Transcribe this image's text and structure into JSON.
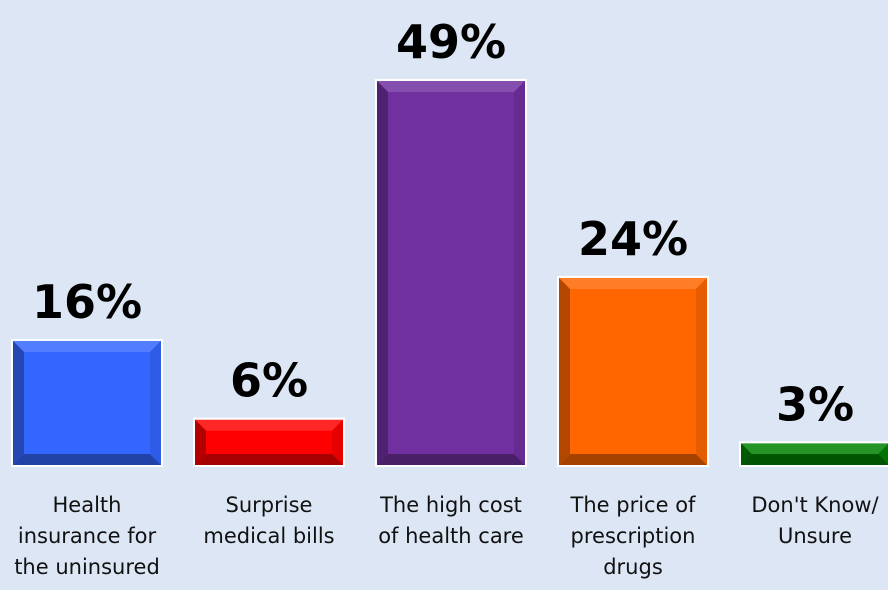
{
  "chart_data": {
    "type": "bar",
    "categories": [
      [
        "Health",
        "insurance for",
        "the uninsured"
      ],
      [
        "Surprise",
        "medical bills"
      ],
      [
        "The high cost",
        "of health care"
      ],
      [
        "The price of",
        "prescription",
        "drugs"
      ],
      [
        "Don't Know/",
        "Unsure"
      ]
    ],
    "values": [
      16,
      6,
      49,
      24,
      3
    ],
    "value_labels": [
      "16%",
      "6%",
      "49%",
      "24%",
      "3%"
    ],
    "colors": [
      "#3366ff",
      "#ff0000",
      "#7030a0",
      "#ff6600",
      "#008000"
    ],
    "ylim": [
      0,
      49
    ],
    "grid": false,
    "legend": "none"
  }
}
